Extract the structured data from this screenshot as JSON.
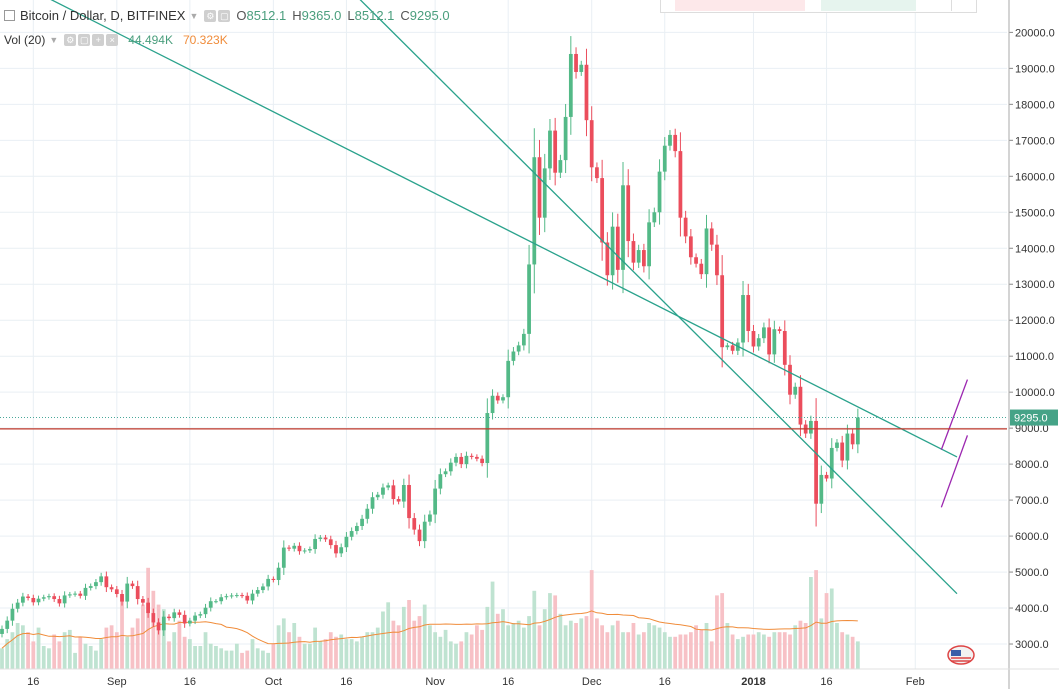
{
  "legend": {
    "symbol": "Bitcoin / Dollar, D, BITFINEX",
    "open_key": "O",
    "open": "8512.1",
    "high_key": "H",
    "high": "9365.0",
    "low_key": "L",
    "low": "8512.1",
    "close_key": "C",
    "close": "9295.0",
    "vol_label": "Vol (20)",
    "vol_value": "44.494K",
    "vol_ma": "70.323K"
  },
  "last_price_label": "9295.0",
  "colors": {
    "up": "#53b987",
    "down": "#eb4d5c",
    "up_vol": "#bfe3d1",
    "down_vol": "#f7c1c6",
    "trend_line": "#2aa28c",
    "channel_line": "#9c27b0",
    "horizontal_line": "#c0392b",
    "vol_ma": "#f08c3a",
    "grid": "#e9eff4"
  },
  "chart_data": {
    "type": "candlestick",
    "title": "Bitcoin / Dollar, D, BITFINEX",
    "y_axis_ticks": [
      "20000.0",
      "19000.0",
      "18000.0",
      "17000.0",
      "16000.0",
      "15000.0",
      "14000.0",
      "13000.0",
      "12000.0",
      "11000.0",
      "10000.0",
      "9000.0",
      "8000.0",
      "7000.0",
      "6000.0",
      "5000.0",
      "4000.0",
      "3000.0"
    ],
    "ylim": [
      2000,
      20900
    ],
    "x_axis_ticks": [
      "16",
      "Sep",
      "16",
      "Oct",
      "16",
      "Nov",
      "16",
      "Dec",
      "16",
      "2018",
      "16",
      "Feb"
    ],
    "date_range": [
      "2017-08-10",
      "2018-02-09"
    ],
    "horizontal_level": 8980,
    "annotations": {
      "descending_line_1": [
        [
          "2017-08-10",
          21600
        ],
        [
          "2018-02-09",
          8200
        ]
      ],
      "descending_line_2": [
        [
          "2017-10-17",
          21000
        ],
        [
          "2018-02-09",
          4400
        ]
      ],
      "channel_upper": [
        [
          "2018-02-06",
          8400
        ],
        [
          "2018-02-11",
          10350
        ]
      ],
      "channel_lower": [
        [
          "2018-02-06",
          6800
        ],
        [
          "2018-02-11",
          8800
        ]
      ]
    },
    "closes": [
      3420,
      3650,
      3980,
      4150,
      4320,
      4280,
      4160,
      4260,
      4300,
      4330,
      4250,
      4130,
      4350,
      4380,
      4400,
      4340,
      4560,
      4610,
      4720,
      4880,
      4580,
      4520,
      4390,
      4180,
      4680,
      4610,
      4250,
      4150,
      3860,
      3600,
      3380,
      3760,
      3720,
      3880,
      3810,
      3570,
      3650,
      3790,
      3830,
      4010,
      4190,
      4190,
      4300,
      4330,
      4350,
      4360,
      4340,
      4210,
      4400,
      4500,
      4600,
      4810,
      4780,
      5120,
      5680,
      5650,
      5730,
      5580,
      5600,
      5640,
      5920,
      5960,
      5910,
      5750,
      5520,
      5690,
      5980,
      6140,
      6280,
      6480,
      6760,
      7080,
      7150,
      7350,
      7410,
      7030,
      6960,
      7420,
      6500,
      6180,
      5860,
      6400,
      6600,
      7320,
      7720,
      7800,
      8040,
      8200,
      8000,
      8230,
      8200,
      8150,
      8030,
      9420,
      9900,
      9770,
      9860,
      10870,
      11130,
      11300,
      11620,
      13550,
      16530,
      14850,
      16220,
      17270,
      16100,
      16450,
      17650,
      19400,
      18900,
      19100,
      17560,
      16250,
      15950,
      14160,
      13250,
      14600,
      13400,
      15750,
      14200,
      13600,
      13950,
      13500,
      14720,
      15000,
      16130,
      16850,
      17150,
      16700,
      14850,
      14330,
      13750,
      13570,
      13280,
      14550,
      14100,
      13250,
      11250,
      11300,
      11150,
      11380,
      12700,
      11700,
      11270,
      11500,
      11800,
      11050,
      11750,
      11700,
      10760,
      9930,
      10150,
      9100,
      8850,
      9200,
      6900,
      7700,
      7600,
      8450,
      8600,
      8100,
      8850,
      8550,
      9295
    ],
    "volumes": [
      2.9,
      3.3,
      3.6,
      4.0,
      3.9,
      3.6,
      3.2,
      3.8,
      3.0,
      2.9,
      3.5,
      3.2,
      3.6,
      3.7,
      2.7,
      3.4,
      3.1,
      3.0,
      2.8,
      3.3,
      3.8,
      3.9,
      3.6,
      5.2,
      3.4,
      3.8,
      4.2,
      4.8,
      6.4,
      5.4,
      4.8,
      4.6,
      3.2,
      3.6,
      4.1,
      3.4,
      3.3,
      3.0,
      3.0,
      3.6,
      3.1,
      3.0,
      2.9,
      2.8,
      2.8,
      3.1,
      2.7,
      2.8,
      3.3,
      2.9,
      2.8,
      2.7,
      3.1,
      3.9,
      4.2,
      3.6,
      4.0,
      3.4,
      3.1,
      3.1,
      3.8,
      3.2,
      3.3,
      3.6,
      3.4,
      3.5,
      3.3,
      3.3,
      3.2,
      3.4,
      3.6,
      3.6,
      3.8,
      4.5,
      4.9,
      4.1,
      3.9,
      4.7,
      5.0,
      4.1,
      4.3,
      4.8,
      3.9,
      3.6,
      3.4,
      3.7,
      3.2,
      3.1,
      3.2,
      3.6,
      3.5,
      3.9,
      3.7,
      4.7,
      5.8,
      4.4,
      4.6,
      3.9,
      4.0,
      4.1,
      3.8,
      4.3,
      5.4,
      3.9,
      4.6,
      5.3,
      5.2,
      4.4,
      3.9,
      4.1,
      4.0,
      4.2,
      4.3,
      6.3,
      4.2,
      3.9,
      3.6,
      3.9,
      4.1,
      3.6,
      3.6,
      4.0,
      3.5,
      3.6,
      4.0,
      3.9,
      3.8,
      3.6,
      3.4,
      3.4,
      3.5,
      3.5,
      3.6,
      3.9,
      3.7,
      4.0,
      3.2,
      5.2,
      5.3,
      4.0,
      3.5,
      3.3,
      3.4,
      3.5,
      3.5,
      3.6,
      3.5,
      3.4,
      3.6,
      3.6,
      3.6,
      3.5,
      3.9,
      4.1,
      4.0,
      6.0,
      6.3,
      4.2,
      5.3,
      5.5,
      4.0,
      3.6,
      3.5,
      3.4,
      3.2
    ]
  }
}
